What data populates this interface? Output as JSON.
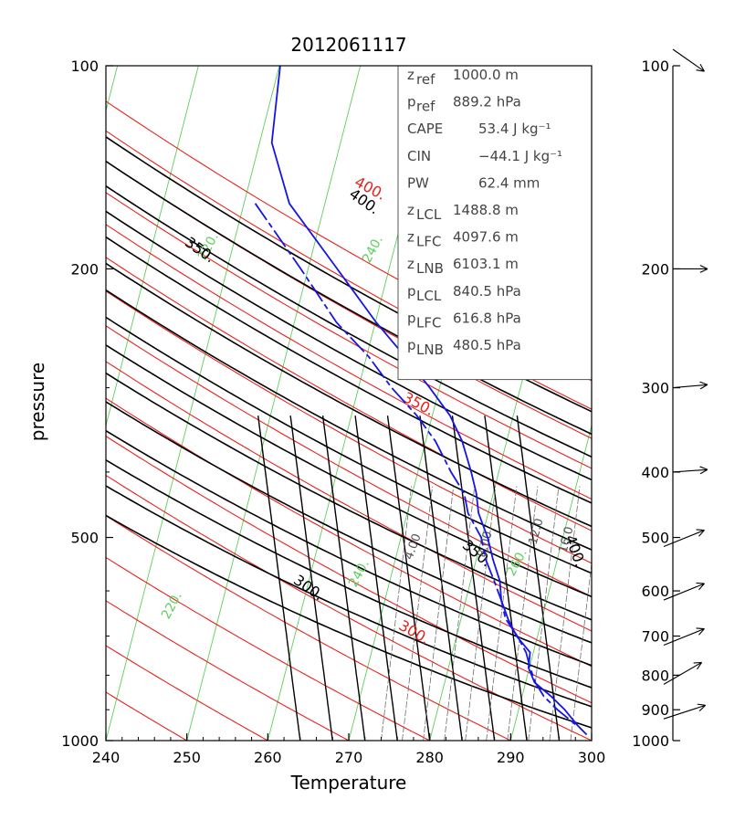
{
  "chart_data": {
    "type": "skew-t thermodynamic diagram",
    "title": "2012061117",
    "xlabel": "Temperature",
    "ylabel": "pressure",
    "xlim": [
      240,
      300
    ],
    "ylim": [
      1000,
      100
    ],
    "x_ticks": [
      "240",
      "250",
      "260",
      "270",
      "280",
      "290",
      "300"
    ],
    "x_tick_values": [
      240,
      250,
      260,
      270,
      280,
      290,
      300
    ],
    "y_ticks": [
      "100",
      "200",
      "500",
      "1000"
    ],
    "y_tick_values": [
      100,
      200,
      500,
      1000
    ],
    "info_box": [
      {
        "sym": "z",
        "sub": "ref",
        "value": "1000.0 m"
      },
      {
        "sym": "p",
        "sub": "ref",
        "value": "889.2 hPa"
      },
      {
        "sym": "CAPE",
        "sub": "",
        "value": "53.4 J kg⁻¹"
      },
      {
        "sym": "CIN",
        "sub": "",
        "value": "−44.1 J kg⁻¹"
      },
      {
        "sym": "PW",
        "sub": "",
        "value": "62.4 mm"
      },
      {
        "sym": "z",
        "sub": "LCL",
        "value": "1488.8 m"
      },
      {
        "sym": "z",
        "sub": "LFC",
        "value": "4097.6 m"
      },
      {
        "sym": "z",
        "sub": "LNB",
        "value": "6103.1 m"
      },
      {
        "sym": "p",
        "sub": "LCL",
        "value": "840.5 hPa"
      },
      {
        "sym": "p",
        "sub": "LFC",
        "value": "616.8 hPa"
      },
      {
        "sym": "p",
        "sub": "LNB",
        "value": "480.5 hPa"
      }
    ],
    "isotherms_green": {
      "values": [
        220,
        240,
        260,
        280,
        300
      ],
      "labels": [
        "220.",
        "240.",
        "220.",
        "240.",
        "260."
      ]
    },
    "dry_adiabats_red": [
      250,
      260,
      270,
      280,
      290,
      300,
      310,
      320,
      330,
      340,
      350,
      360,
      370,
      380,
      390,
      400,
      410
    ],
    "red_labels": [
      "400.",
      "350.",
      "300."
    ],
    "black_labels": [
      "400.",
      "350.",
      "300.",
      "350.",
      "400."
    ],
    "gray_labels": [
      "4.00",
      "8.00",
      "12.0",
      "16.0"
    ],
    "moist_adiabats_black": [
      287,
      295,
      302,
      310,
      318,
      326,
      334,
      342,
      350,
      358,
      366,
      374,
      382,
      390,
      398
    ],
    "mixing_ratio_lines": [
      3,
      4,
      6,
      8,
      10,
      12,
      14,
      16,
      20,
      24
    ],
    "moist_curve_lines": [
      264,
      268,
      272,
      276,
      280,
      284,
      288,
      292,
      296
    ],
    "sounding_solid": {
      "p": [
        100,
        130,
        160,
        200,
        240,
        270,
        300,
        330,
        360,
        400,
        430,
        460,
        500,
        540,
        580,
        620,
        660,
        700,
        740,
        780,
        820,
        860,
        900,
        950,
        980
      ],
      "t": [
        240.1,
        241.5,
        245.6,
        253.6,
        260.1,
        264.8,
        268.8,
        272.2,
        274.5,
        276.6,
        277.9,
        278.8,
        280.7,
        282.1,
        283.6,
        284.4,
        285.8,
        287.4,
        289.6,
        289.9,
        291.1,
        293.6,
        295.7,
        297.8,
        299.2
      ]
    },
    "sounding_dashed": {
      "p": [
        160,
        200,
        240,
        270,
        300,
        330,
        360,
        400,
        430,
        460,
        500,
        540,
        580,
        620,
        660,
        700,
        740,
        780,
        820,
        860,
        900,
        950
      ],
      "t": [
        241.4,
        249.1,
        255.2,
        260.3,
        264.1,
        268.1,
        271.2,
        274.1,
        276.4,
        277.5,
        279.9,
        281.2,
        282.9,
        284.4,
        285.5,
        287.5,
        289.1,
        290.1,
        291.2,
        292.7,
        294.8,
        297.7
      ]
    },
    "wind_profile": {
      "levels": [
        "100",
        "200",
        "300",
        "400",
        "500",
        "600",
        "700",
        "800",
        "900",
        "1000"
      ],
      "barb_pressures": [
        100,
        200,
        300,
        400,
        500,
        600,
        700,
        800,
        900
      ]
    }
  }
}
